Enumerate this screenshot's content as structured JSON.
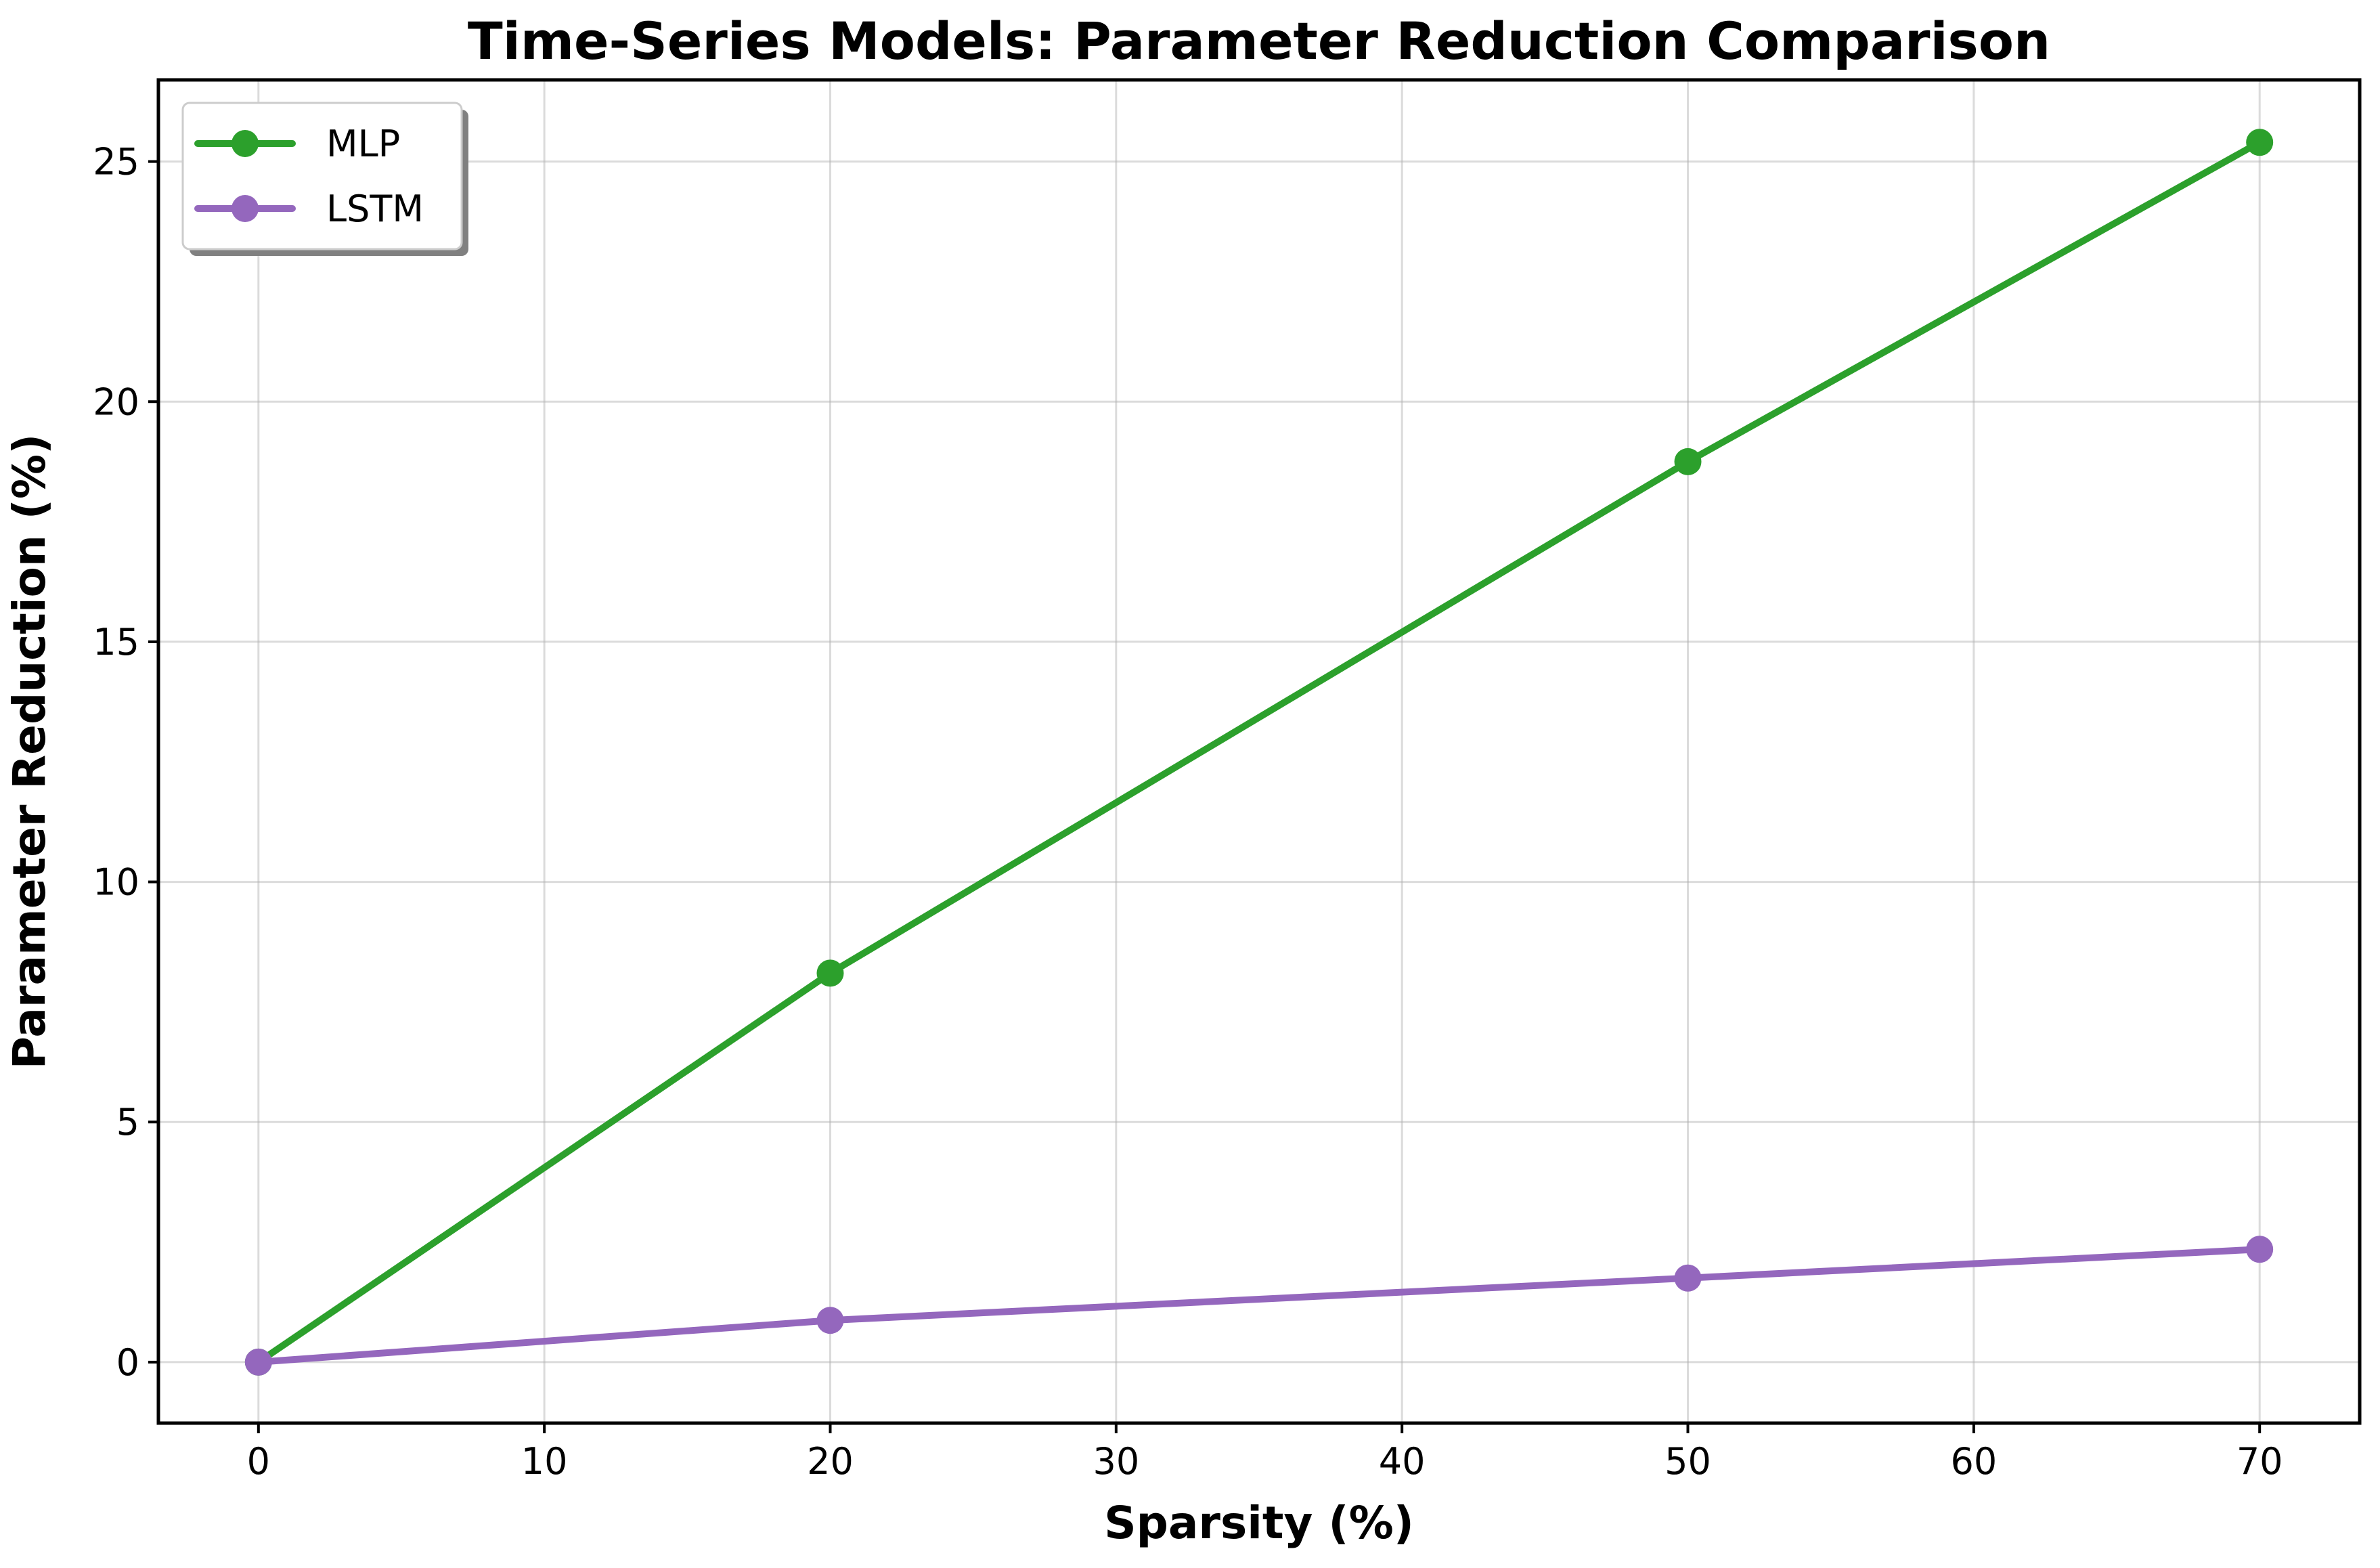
{
  "chart_data": {
    "type": "line",
    "title": "Time-Series Models: Parameter Reduction Comparison",
    "xlabel": "Sparsity (%)",
    "ylabel": "Parameter Reduction (%)",
    "xlim": [
      -3.5,
      73.5
    ],
    "ylim": [
      -1.27,
      26.7
    ],
    "xticks": [
      0,
      10,
      20,
      30,
      40,
      50,
      60,
      70
    ],
    "yticks": [
      0,
      5,
      10,
      15,
      20,
      25
    ],
    "grid": true,
    "legend_position": "top-left",
    "x": [
      0,
      20,
      50,
      70
    ],
    "series": [
      {
        "name": "MLP",
        "color": "#2ca02c",
        "values": [
          0,
          8.1,
          18.75,
          25.4
        ]
      },
      {
        "name": "LSTM",
        "color": "#9467bd",
        "values": [
          0,
          0.87,
          1.75,
          2.35
        ]
      }
    ]
  }
}
